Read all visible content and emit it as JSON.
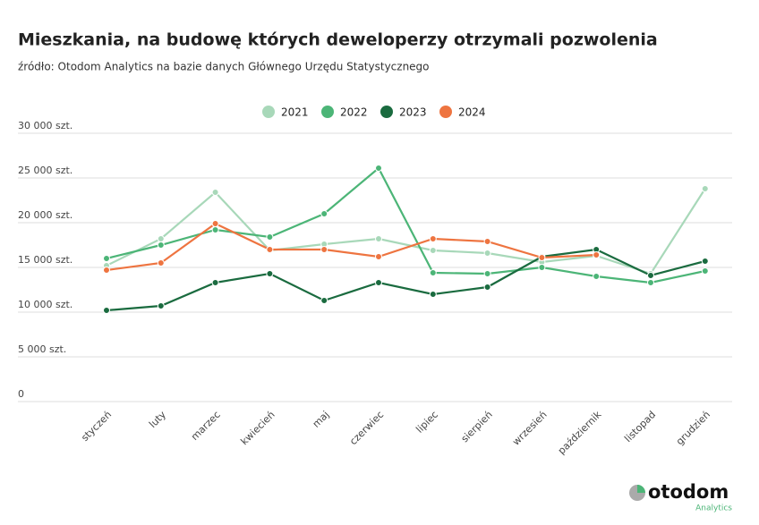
{
  "chart_data": {
    "type": "line",
    "title": "Mieszkania, na budowę których deweloperzy otrzymali pozwolenia",
    "subtitle": "źródło: Otodom Analytics na bazie danych Głównego Urzędu Statystycznego",
    "categories": [
      "styczeń",
      "luty",
      "marzec",
      "kwiecień",
      "maj",
      "czerwiec",
      "lipiec",
      "sierpień",
      "wrzesień",
      "październik",
      "listopad",
      "grudzień"
    ],
    "series": [
      {
        "name": "2021",
        "color": "#a8d8b9",
        "values": [
          15200,
          18200,
          23400,
          16900,
          17600,
          18200,
          16900,
          16600,
          15600,
          16300,
          14300,
          23800
        ]
      },
      {
        "name": "2022",
        "color": "#4cb577",
        "values": [
          16000,
          17500,
          19200,
          18400,
          21000,
          26100,
          14400,
          14300,
          15000,
          14000,
          13300,
          14600
        ]
      },
      {
        "name": "2023",
        "color": "#1a6b3f",
        "values": [
          10200,
          10700,
          13300,
          14300,
          11300,
          13300,
          12000,
          12800,
          16200,
          17000,
          14100,
          15700
        ]
      },
      {
        "name": "2024",
        "color": "#ee7440",
        "values": [
          14700,
          15500,
          19900,
          17000,
          17000,
          16200,
          18200,
          17900,
          16100,
          16400,
          null,
          null
        ]
      }
    ],
    "ylim": [
      0,
      30000
    ],
    "yticks": [
      0,
      {
        "value": 5000,
        "label": "5 000 szt."
      },
      {
        "value": 10000,
        "label": "10 000 szt."
      },
      {
        "value": 15000,
        "label": "15 000 szt."
      },
      {
        "value": 20000,
        "label": "20 000 szt."
      },
      {
        "value": 25000,
        "label": "25 000 szt."
      },
      {
        "value": 30000,
        "label": "30 000 szt."
      }
    ],
    "grid": true,
    "legend": "top",
    "logo": {
      "name": "otodom",
      "tagline": "Analytics"
    }
  }
}
